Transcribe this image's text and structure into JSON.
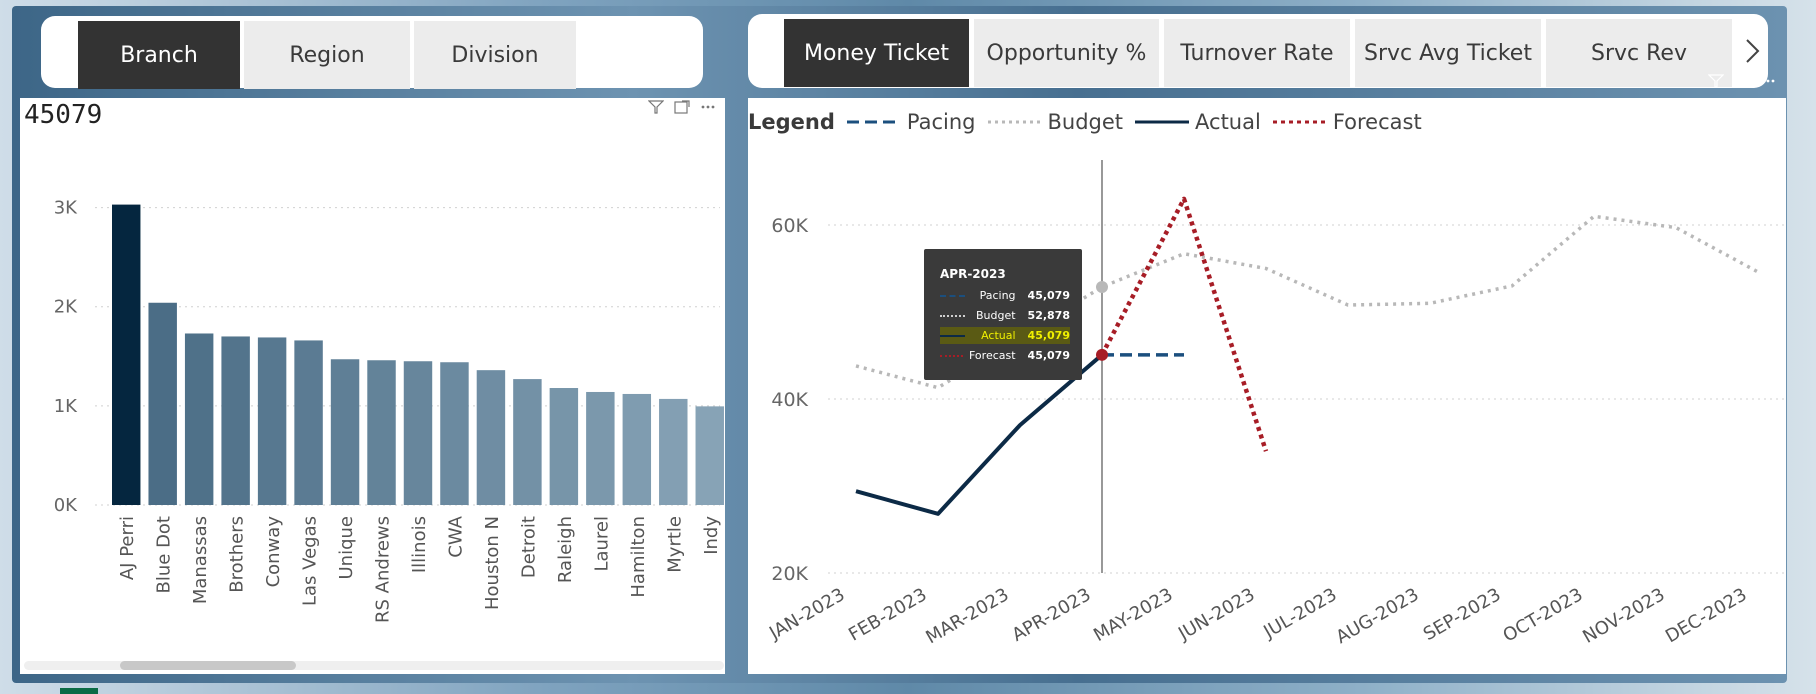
{
  "left_tabs": [
    {
      "label": "Branch",
      "active": true
    },
    {
      "label": "Region",
      "active": false
    },
    {
      "label": "Division",
      "active": false
    }
  ],
  "right_tabs": [
    {
      "label": "Money Ticket",
      "active": true
    },
    {
      "label": "Opportunity %",
      "active": false
    },
    {
      "label": "Turnover Rate",
      "active": false
    },
    {
      "label": "Srvc Avg Ticket",
      "active": false
    },
    {
      "label": "Srvc Rev",
      "active": false
    }
  ],
  "icons": {
    "filter": "filter-icon",
    "focus": "focus-mode-icon",
    "more": "more-options-icon",
    "next": "chevron-right-icon"
  },
  "bar_panel": {
    "value_label": "45079"
  },
  "line_panel": {
    "legend_title": "Legend"
  },
  "tooltip": {
    "title": "APR-2023",
    "rows": [
      {
        "label": "Pacing",
        "value": "45,079"
      },
      {
        "label": "Budget",
        "value": "52,878"
      },
      {
        "label": "Actual",
        "value": "45,079"
      },
      {
        "label": "Forecast",
        "value": "45,079"
      }
    ]
  },
  "colors": {
    "bar_dark": "#05263f",
    "bar_mid": "#4b6d86",
    "bar_light": "#87a3b6",
    "pacing": "#1b4f7e",
    "budget": "#b8b8b8",
    "actual": "#0c2a46",
    "forecast": "#a71d26"
  },
  "chart_data": [
    {
      "type": "bar",
      "categories": [
        "AJ Perri",
        "Blue Dot",
        "Manassas",
        "Brothers",
        "Conway",
        "Las Vegas",
        "Unique",
        "RS Andrews",
        "Illinois",
        "CWA",
        "Houston N",
        "Detroit",
        "Raleigh",
        "Laurel",
        "Hamilton",
        "Myrtle",
        "Indy"
      ],
      "values": [
        3030,
        2040,
        1730,
        1700,
        1690,
        1660,
        1470,
        1460,
        1450,
        1440,
        1360,
        1270,
        1180,
        1140,
        1120,
        1070,
        995
      ],
      "yticks": [
        "0K",
        "1K",
        "2K",
        "3K"
      ],
      "ylim": [
        0,
        3500
      ],
      "grid": true
    },
    {
      "type": "line",
      "x": [
        "JAN-2023",
        "FEB-2023",
        "MAR-2023",
        "APR-2023",
        "MAY-2023",
        "JUN-2023",
        "JUL-2023",
        "AUG-2023",
        "SEP-2023",
        "OCT-2023",
        "NOV-2023",
        "DEC-2023"
      ],
      "yticks": [
        "20K",
        "40K",
        "60K"
      ],
      "ylim": [
        20000,
        70000
      ],
      "grid": true,
      "legend_position": "top-left",
      "series": [
        {
          "name": "Pacing",
          "values": [
            null,
            null,
            null,
            45079,
            45079,
            null,
            null,
            null,
            null,
            null,
            null,
            null
          ]
        },
        {
          "name": "Budget",
          "values": [
            43800,
            41300,
            null,
            52878,
            56700,
            55000,
            50800,
            51000,
            53000,
            61000,
            59700,
            54600
          ]
        },
        {
          "name": "Actual",
          "values": [
            29400,
            26800,
            37000,
            45079,
            null,
            null,
            null,
            null,
            null,
            null,
            null,
            null
          ]
        },
        {
          "name": "Forecast",
          "values": [
            null,
            null,
            null,
            45079,
            63000,
            34000,
            null,
            null,
            null,
            null,
            null,
            null
          ]
        }
      ],
      "hover_x": "APR-2023"
    }
  ]
}
